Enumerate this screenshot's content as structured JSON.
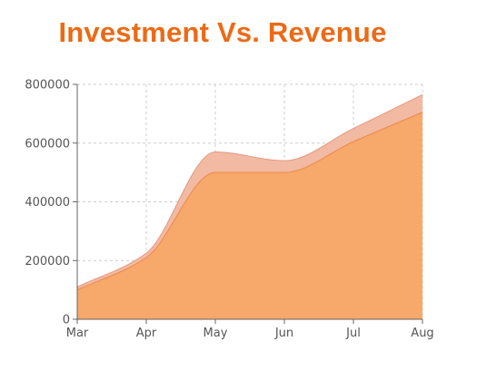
{
  "chart_data": {
    "type": "area",
    "title": "Investment Vs. Revenue",
    "xlabel": "",
    "ylabel": "",
    "categories": [
      "Mar",
      "Apr",
      "May",
      "Jun",
      "Jul",
      "Aug"
    ],
    "ylim": [
      0,
      800000
    ],
    "yticks": [
      "0",
      "200000",
      "400000",
      "600000",
      "800000"
    ],
    "grid": true,
    "stacked": false,
    "series": [
      {
        "values": [
          110000,
          225000,
          570000,
          540000,
          650000,
          765000
        ],
        "color": "#f2b9a3",
        "stroke": "#e59a80"
      },
      {
        "values": [
          100000,
          210000,
          500000,
          500000,
          605000,
          705000
        ],
        "color": "#f7a86b",
        "stroke": "#ec8a47"
      }
    ]
  }
}
